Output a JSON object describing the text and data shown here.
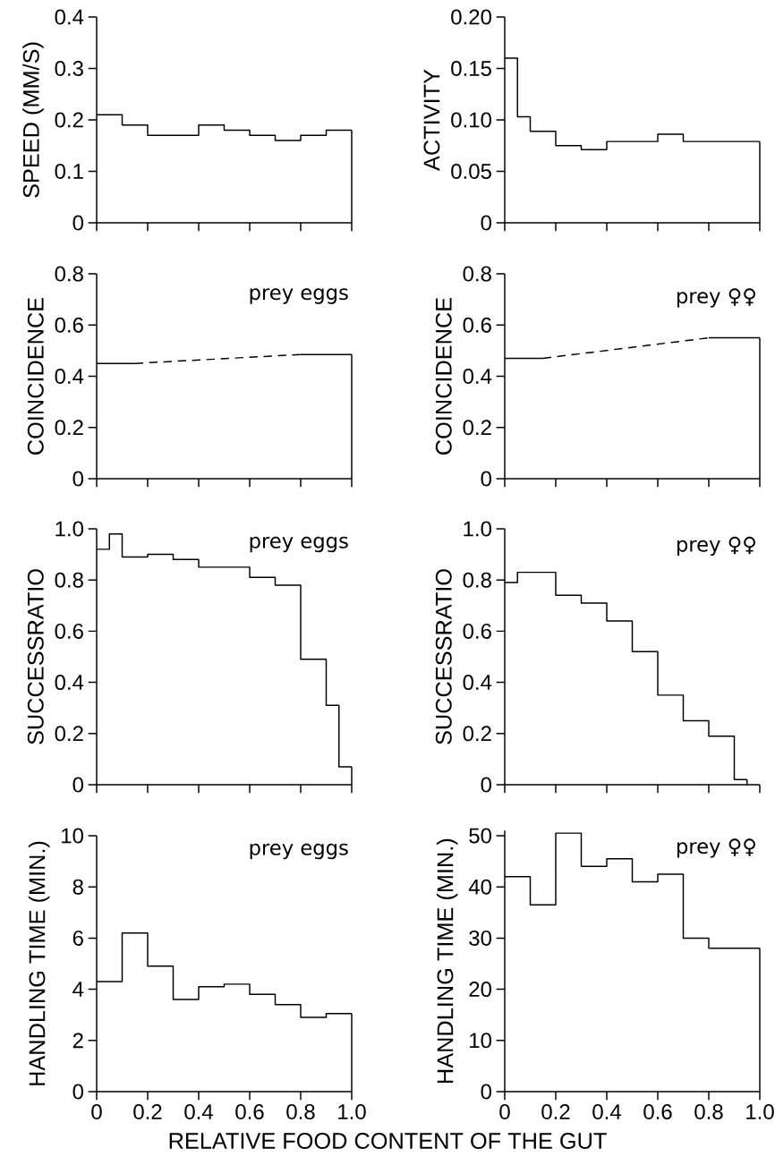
{
  "chart_data": [
    {
      "type": "step",
      "ylabel": "SPEED (MM/S)",
      "color": "#000000",
      "x": [
        0,
        0.1,
        0.2,
        0.3,
        0.4,
        0.5,
        0.6,
        0.7,
        0.8,
        0.9,
        1.0
      ],
      "values": [
        0.21,
        0.19,
        0.17,
        0.17,
        0.19,
        0.18,
        0.17,
        0.16,
        0.17,
        0.18,
        0.18
      ],
      "xlim": [
        0,
        1
      ],
      "xticks": [
        0,
        0.2,
        0.4,
        0.6,
        0.8,
        1.0
      ],
      "ylim": [
        0,
        0.4
      ],
      "yticks": [
        0,
        0.1,
        0.2,
        0.3,
        0.4
      ],
      "tick_labels": "y"
    },
    {
      "type": "step",
      "ylabel": "ACTIVITY",
      "color": "#000000",
      "x": [
        0,
        0.05,
        0.1,
        0.2,
        0.3,
        0.4,
        0.6,
        0.7,
        1.0
      ],
      "values": [
        0.16,
        0.103,
        0.089,
        0.075,
        0.071,
        0.079,
        0.086,
        0.079,
        0.079
      ],
      "xlim": [
        0,
        1
      ],
      "xticks": [
        0,
        0.2,
        0.4,
        0.6,
        0.8,
        1.0
      ],
      "ylim": [
        0,
        0.2
      ],
      "yticks": [
        0,
        {
          "value": 0.05,
          "label": "0.05"
        },
        {
          "value": 0.1,
          "label": "0.10"
        },
        {
          "value": 0.15,
          "label": "0.15"
        },
        {
          "value": 0.2,
          "label": "0.20"
        }
      ],
      "tick_labels": "y"
    },
    {
      "type": "line",
      "ylabel": "COINCIDENCE",
      "annotations": [
        "prey eggs"
      ],
      "series": [
        {
          "color": "#000000",
          "line_style": "solid",
          "x": [
            0,
            0.15
          ],
          "values": [
            0.45,
            0.45
          ]
        },
        {
          "color": "#000000",
          "line_style": "dashed",
          "x": [
            0.15,
            0.8
          ],
          "values": [
            0.45,
            0.485
          ]
        },
        {
          "color": "#000000",
          "line_style": "solid",
          "x": [
            0.8,
            1.0
          ],
          "values": [
            0.485,
            0.485
          ]
        }
      ],
      "xlim": [
        0,
        1
      ],
      "xticks": [
        0,
        0.2,
        0.4,
        0.6,
        0.8,
        1.0
      ],
      "ylim": [
        0,
        0.8
      ],
      "yticks": [
        0,
        0.2,
        0.4,
        0.6,
        0.8
      ],
      "tick_labels": "y"
    },
    {
      "type": "line",
      "ylabel": "COINCIDENCE",
      "annotations": [
        "prey ♀♀"
      ],
      "series": [
        {
          "color": "#000000",
          "line_style": "solid",
          "x": [
            0,
            0.15
          ],
          "values": [
            0.47,
            0.47
          ]
        },
        {
          "color": "#000000",
          "line_style": "dashed",
          "x": [
            0.15,
            0.8
          ],
          "values": [
            0.47,
            0.55
          ]
        },
        {
          "color": "#000000",
          "line_style": "solid",
          "x": [
            0.8,
            1.0
          ],
          "values": [
            0.55,
            0.55
          ]
        }
      ],
      "xlim": [
        0,
        1
      ],
      "xticks": [
        0,
        0.2,
        0.4,
        0.6,
        0.8,
        1.0
      ],
      "ylim": [
        0,
        0.8
      ],
      "yticks": [
        0,
        0.2,
        0.4,
        0.6,
        0.8
      ],
      "tick_labels": "y"
    },
    {
      "type": "step",
      "ylabel": "SUCCESSRATIO",
      "annotations": [
        "prey eggs"
      ],
      "color": "#000000",
      "x": [
        0,
        0.05,
        0.1,
        0.2,
        0.3,
        0.4,
        0.6,
        0.7,
        0.8,
        0.9,
        0.95,
        1.0
      ],
      "values": [
        0.92,
        0.98,
        0.89,
        0.9,
        0.88,
        0.85,
        0.81,
        0.78,
        0.49,
        0.31,
        0.07,
        0.07
      ],
      "xlim": [
        0,
        1
      ],
      "xticks": [
        0,
        0.2,
        0.4,
        0.6,
        0.8,
        1.0
      ],
      "ylim": [
        0,
        1.0
      ],
      "yticks": [
        0,
        0.2,
        0.4,
        0.6,
        0.8,
        {
          "value": 1.0,
          "label": "1.0"
        }
      ],
      "tick_labels": "y"
    },
    {
      "type": "step",
      "ylabel": "SUCCESSRATIO",
      "annotations": [
        "prey ♀♀"
      ],
      "color": "#000000",
      "x": [
        0,
        0.05,
        0.2,
        0.3,
        0.4,
        0.5,
        0.6,
        0.7,
        0.8,
        0.9,
        0.95
      ],
      "values": [
        0.79,
        0.83,
        0.74,
        0.71,
        0.64,
        0.52,
        0.35,
        0.25,
        0.19,
        0.02,
        0.02
      ],
      "xlim": [
        0,
        1
      ],
      "xticks": [
        0,
        0.2,
        0.4,
        0.6,
        0.8,
        1.0
      ],
      "ylim": [
        0,
        1.0
      ],
      "yticks": [
        0,
        0.2,
        0.4,
        0.6,
        0.8,
        {
          "value": 1.0,
          "label": "1.0"
        }
      ],
      "tick_labels": "y"
    },
    {
      "type": "step",
      "ylabel": "HANDLING TIME (MIN.)",
      "xlabel": "RELATIVE FOOD CONTENT OF THE GUT",
      "annotations": [
        "prey eggs"
      ],
      "color": "#000000",
      "x": [
        0,
        0.1,
        0.2,
        0.3,
        0.4,
        0.5,
        0.6,
        0.7,
        0.8,
        0.9,
        1.0
      ],
      "values": [
        4.3,
        6.2,
        4.9,
        3.6,
        4.1,
        4.2,
        3.8,
        3.4,
        2.9,
        3.05,
        3.05
      ],
      "xlim": [
        0,
        1
      ],
      "xticks": [
        0,
        0.2,
        0.4,
        0.6,
        0.8,
        {
          "value": 1.0,
          "label": "1.0"
        }
      ],
      "ylim": [
        0,
        10
      ],
      "yticks": [
        0,
        2,
        4,
        6,
        8,
        10
      ]
    },
    {
      "type": "step",
      "ylabel": "HANDLING TIME (MIN.)",
      "annotations": [
        "prey ♀♀"
      ],
      "color": "#000000",
      "x": [
        0,
        0.1,
        0.2,
        0.3,
        0.4,
        0.5,
        0.6,
        0.7,
        0.8,
        1.0
      ],
      "values": [
        42,
        36.5,
        50.5,
        44,
        45.5,
        41,
        42.5,
        30,
        28,
        28
      ],
      "xlim": [
        0,
        1
      ],
      "xticks": [
        0,
        0.2,
        0.4,
        0.6,
        0.8,
        {
          "value": 1.0,
          "label": "1.0"
        }
      ],
      "ylim": [
        0,
        51
      ],
      "yticks": [
        0,
        10,
        20,
        30,
        40,
        50
      ]
    }
  ]
}
